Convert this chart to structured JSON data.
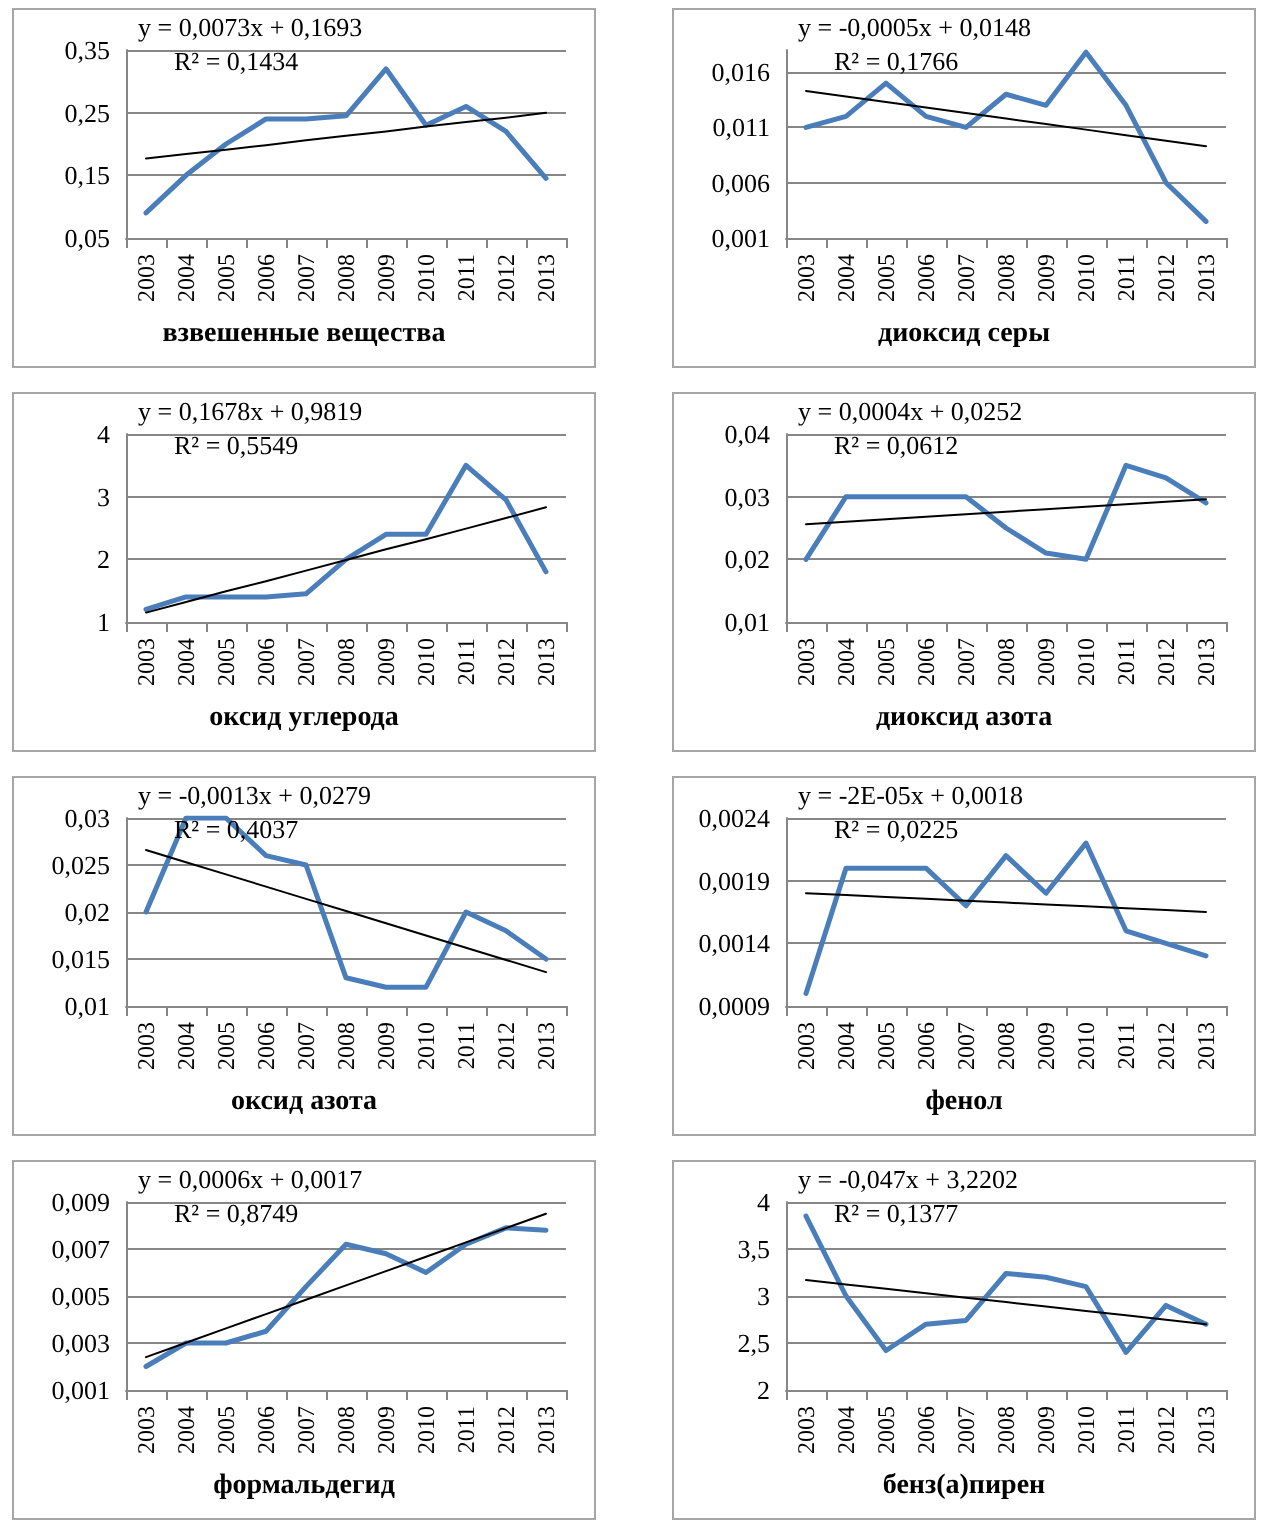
{
  "chart_data": [
    {
      "type": "line",
      "xlabel": "взвешенные вещества",
      "categories": [
        "2003",
        "2004",
        "2005",
        "2006",
        "2007",
        "2008",
        "2009",
        "2010",
        "2011",
        "2012",
        "2013"
      ],
      "series": [
        {
          "color": "#4a7ebb",
          "values": [
            0.09,
            0.15,
            0.2,
            0.24,
            0.24,
            0.245,
            0.32,
            0.23,
            0.26,
            0.22,
            0.145
          ]
        },
        {
          "type": "line",
          "color": "#000000",
          "values": [
            0.177,
            0.184,
            0.191,
            0.198,
            0.206,
            0.213,
            0.22,
            0.228,
            0.235,
            0.242,
            0.25
          ]
        }
      ],
      "ylim": [
        0.05,
        0.35
      ],
      "yticks": [
        {
          "value": 0.05,
          "label": "0,05"
        },
        {
          "value": 0.15,
          "label": "0,15"
        },
        {
          "value": 0.25,
          "label": "0,25"
        },
        {
          "value": 0.35,
          "label": "0,35"
        }
      ],
      "grid": "y",
      "annotations": [
        "y = 0,0073x + 0,1693",
        "R² = 0,1434"
      ]
    },
    {
      "type": "line",
      "xlabel": "диоксид серы",
      "categories": [
        "2003",
        "2004",
        "2005",
        "2006",
        "2007",
        "2008",
        "2009",
        "2010",
        "2011",
        "2012",
        "2013"
      ],
      "series": [
        {
          "color": "#4a7ebb",
          "values": [
            0.011,
            0.012,
            0.015,
            0.012,
            0.011,
            0.014,
            0.013,
            0.0178,
            0.013,
            0.006,
            0.0025
          ]
        },
        {
          "type": "line",
          "color": "#000000",
          "values": [
            0.0143,
            0.0138,
            0.0133,
            0.0128,
            0.0123,
            0.0118,
            0.0113,
            0.0108,
            0.0103,
            0.0098,
            0.0093
          ]
        }
      ],
      "ylim": [
        0.001,
        0.018
      ],
      "yticks": [
        {
          "value": 0.001,
          "label": "0,001"
        },
        {
          "value": 0.006,
          "label": "0,006"
        },
        {
          "value": 0.011,
          "label": "0,011"
        },
        {
          "value": 0.016,
          "label": "0,016"
        }
      ],
      "grid": "y",
      "annotations": [
        "y = -0,0005x + 0,0148",
        "R² = 0,1766"
      ]
    },
    {
      "type": "line",
      "xlabel": "оксид углерода",
      "categories": [
        "2003",
        "2004",
        "2005",
        "2006",
        "2007",
        "2008",
        "2009",
        "2010",
        "2011",
        "2012",
        "2013"
      ],
      "series": [
        {
          "color": "#4a7ebb",
          "values": [
            1.2,
            1.4,
            1.4,
            1.4,
            1.45,
            2.0,
            2.4,
            2.4,
            3.5,
            2.95,
            1.8
          ]
        },
        {
          "type": "line",
          "color": "#000000",
          "values": [
            1.15,
            1.32,
            1.49,
            1.65,
            1.82,
            1.99,
            2.16,
            2.32,
            2.49,
            2.66,
            2.83
          ]
        }
      ],
      "ylim": [
        1,
        4
      ],
      "yticks": [
        1,
        2,
        3,
        4
      ],
      "grid": "y",
      "annotations": [
        "y = 0,1678x + 0,9819",
        "R² = 0,5549"
      ]
    },
    {
      "type": "line",
      "xlabel": "диоксид азота",
      "categories": [
        "2003",
        "2004",
        "2005",
        "2006",
        "2007",
        "2008",
        "2009",
        "2010",
        "2011",
        "2012",
        "2013"
      ],
      "series": [
        {
          "color": "#4a7ebb",
          "values": [
            0.02,
            0.03,
            0.03,
            0.03,
            0.03,
            0.025,
            0.021,
            0.02,
            0.035,
            0.033,
            0.029
          ]
        },
        {
          "type": "line",
          "color": "#000000",
          "values": [
            0.0256,
            0.026,
            0.0264,
            0.0268,
            0.0272,
            0.0276,
            0.028,
            0.0284,
            0.0288,
            0.0292,
            0.0296
          ]
        }
      ],
      "ylim": [
        0.01,
        0.04
      ],
      "yticks": [
        {
          "value": 0.01,
          "label": "0,01"
        },
        {
          "value": 0.02,
          "label": "0,02"
        },
        {
          "value": 0.03,
          "label": "0,03"
        },
        {
          "value": 0.04,
          "label": "0,04"
        }
      ],
      "grid": "y",
      "annotations": [
        "y = 0,0004x + 0,0252",
        "R² = 0,0612"
      ]
    },
    {
      "type": "line",
      "xlabel": "оксид азота",
      "categories": [
        "2003",
        "2004",
        "2005",
        "2006",
        "2007",
        "2008",
        "2009",
        "2010",
        "2011",
        "2012",
        "2013"
      ],
      "series": [
        {
          "color": "#4a7ebb",
          "values": [
            0.02,
            0.03,
            0.03,
            0.026,
            0.025,
            0.013,
            0.012,
            0.012,
            0.02,
            0.018,
            0.015
          ]
        },
        {
          "type": "line",
          "color": "#000000",
          "values": [
            0.0266,
            0.0253,
            0.024,
            0.0227,
            0.0214,
            0.0201,
            0.0188,
            0.0175,
            0.0162,
            0.0149,
            0.0136
          ]
        }
      ],
      "ylim": [
        0.01,
        0.03
      ],
      "yticks": [
        {
          "value": 0.01,
          "label": "0,01"
        },
        {
          "value": 0.015,
          "label": "0,015"
        },
        {
          "value": 0.02,
          "label": "0,02"
        },
        {
          "value": 0.025,
          "label": "0,025"
        },
        {
          "value": 0.03,
          "label": "0,03"
        }
      ],
      "grid": "y",
      "annotations": [
        "y = -0,0013x + 0,0279",
        "R² = 0,4037"
      ]
    },
    {
      "type": "line",
      "xlabel": "фенол",
      "categories": [
        "2003",
        "2004",
        "2005",
        "2006",
        "2007",
        "2008",
        "2009",
        "2010",
        "2011",
        "2012",
        "2013"
      ],
      "series": [
        {
          "color": "#4a7ebb",
          "values": [
            0.001,
            0.002,
            0.002,
            0.002,
            0.0017,
            0.0021,
            0.0018,
            0.0022,
            0.0015,
            0.0014,
            0.0013
          ]
        },
        {
          "type": "line",
          "color": "#000000",
          "values": [
            0.0018,
            0.001785,
            0.00177,
            0.001755,
            0.00174,
            0.001725,
            0.00171,
            0.001695,
            0.00168,
            0.001665,
            0.00165
          ]
        }
      ],
      "ylim": [
        0.0009,
        0.0024
      ],
      "yticks": [
        {
          "value": 0.0009,
          "label": "0,0009"
        },
        {
          "value": 0.0014,
          "label": "0,0014"
        },
        {
          "value": 0.0019,
          "label": "0,0019"
        },
        {
          "value": 0.0024,
          "label": "0,0024"
        }
      ],
      "grid": "y",
      "annotations": [
        "y = -2E-05x + 0,0018",
        "R² = 0,0225"
      ]
    },
    {
      "type": "line",
      "xlabel": "формальдегид",
      "categories": [
        "2003",
        "2004",
        "2005",
        "2006",
        "2007",
        "2008",
        "2009",
        "2010",
        "2011",
        "2012",
        "2013"
      ],
      "series": [
        {
          "color": "#4a7ebb",
          "values": [
            0.002,
            0.003,
            0.003,
            0.0035,
            0.0054,
            0.0072,
            0.0068,
            0.006,
            0.0072,
            0.0079,
            0.0078
          ]
        },
        {
          "type": "line",
          "color": "#000000",
          "values": [
            0.0024,
            0.00301,
            0.00362,
            0.00423,
            0.00484,
            0.00545,
            0.00606,
            0.00667,
            0.00728,
            0.00789,
            0.0085
          ]
        }
      ],
      "ylim": [
        0.001,
        0.009
      ],
      "yticks": [
        {
          "value": 0.001,
          "label": "0,001"
        },
        {
          "value": 0.003,
          "label": "0,003"
        },
        {
          "value": 0.005,
          "label": "0,005"
        },
        {
          "value": 0.007,
          "label": "0,007"
        },
        {
          "value": 0.009,
          "label": "0,009"
        }
      ],
      "grid": "y",
      "annotations": [
        "y = 0,0006x + 0,0017",
        "R² = 0,8749"
      ]
    },
    {
      "type": "line",
      "xlabel": "бенз(а)пирен",
      "categories": [
        "2003",
        "2004",
        "2005",
        "2006",
        "2007",
        "2008",
        "2009",
        "2010",
        "2011",
        "2012",
        "2013"
      ],
      "series": [
        {
          "color": "#4a7ebb",
          "values": [
            3.85,
            3.0,
            2.42,
            2.7,
            2.74,
            3.24,
            3.2,
            3.1,
            2.4,
            2.9,
            2.7
          ]
        },
        {
          "type": "line",
          "color": "#000000",
          "values": [
            3.17,
            3.123,
            3.076,
            3.029,
            2.982,
            2.935,
            2.888,
            2.841,
            2.794,
            2.747,
            2.7
          ]
        }
      ],
      "ylim": [
        2,
        4
      ],
      "yticks": [
        2,
        {
          "value": 2.5,
          "label": "2,5"
        },
        3,
        {
          "value": 3.5,
          "label": "3,5"
        },
        4
      ],
      "grid": "y",
      "annotations": [
        "y = -0,047x + 3,2202",
        "R² = 0,1377"
      ]
    }
  ]
}
